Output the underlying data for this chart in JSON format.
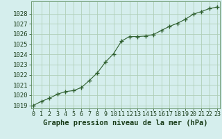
{
  "x": [
    0,
    1,
    2,
    3,
    4,
    5,
    6,
    7,
    8,
    9,
    10,
    11,
    12,
    13,
    14,
    15,
    16,
    17,
    18,
    19,
    20,
    21,
    22,
    23
  ],
  "y": [
    1019.0,
    1019.4,
    1019.7,
    1020.1,
    1020.35,
    1020.45,
    1020.75,
    1021.45,
    1022.2,
    1023.25,
    1024.05,
    1025.3,
    1025.75,
    1025.75,
    1025.8,
    1025.95,
    1026.35,
    1026.75,
    1027.05,
    1027.45,
    1027.95,
    1028.2,
    1028.5,
    1028.65
  ],
  "line_color": "#2d5e2d",
  "marker": "+",
  "marker_size": 4,
  "marker_lw": 1.0,
  "bg_color": "#d5eeed",
  "grid_color": "#b0cfb8",
  "xlabel": "Graphe pression niveau de la mer (hPa)",
  "xlabel_color": "#1a3d1a",
  "xlabel_fontsize": 7.5,
  "tick_color": "#1a3d1a",
  "ytick_fontsize": 6.5,
  "xtick_fontsize": 6.0,
  "ylim_min": 1018.7,
  "ylim_max": 1029.2,
  "xlim_min": -0.3,
  "xlim_max": 23.3,
  "yticks": [
    1019,
    1020,
    1021,
    1022,
    1023,
    1024,
    1025,
    1026,
    1027,
    1028
  ],
  "xticks": [
    0,
    1,
    2,
    3,
    4,
    5,
    6,
    7,
    8,
    9,
    10,
    11,
    12,
    13,
    14,
    15,
    16,
    17,
    18,
    19,
    20,
    21,
    22,
    23
  ]
}
